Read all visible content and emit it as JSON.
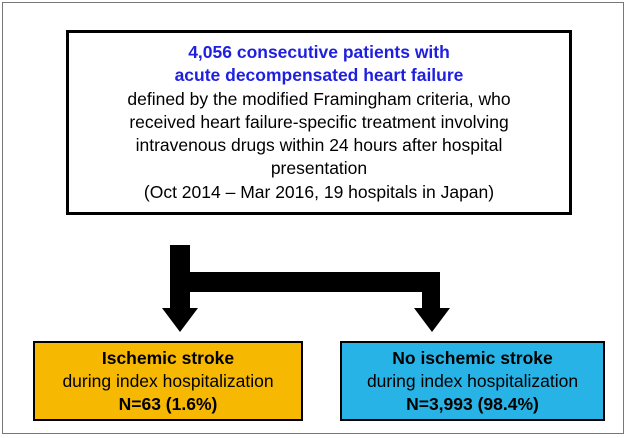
{
  "nodes": [
    {
      "lines": [
        "4,056 consecutive patients with",
        "acute decompensated heart failure",
        "defined by the modified Framingham criteria, who",
        "received heart failure-specific treatment involving",
        "intravenous drugs within 24 hours after hospital",
        "presentation",
        "(Oct 2014 – Mar 2016, 19 hospitals in Japan)"
      ]
    },
    {
      "lines": [
        "Ischemic stroke",
        "during index hospitalization",
        "N=63 (1.6%)"
      ]
    },
    {
      "lines": [
        "No ischemic stroke",
        "during index hospitalization",
        "N=3,993 (98.4%)"
      ]
    }
  ]
}
